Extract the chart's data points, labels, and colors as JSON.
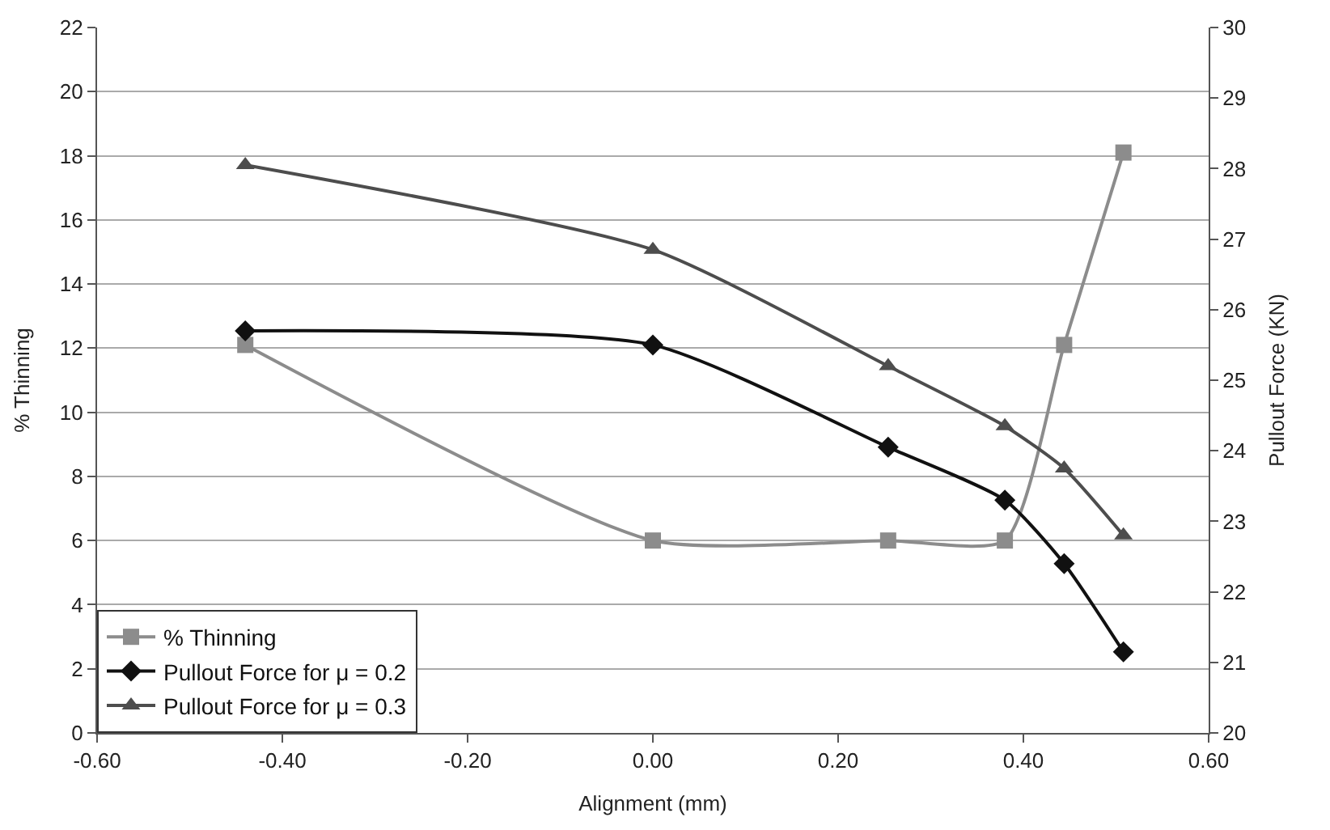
{
  "chart_data": {
    "type": "line",
    "xlabel": "Alignment (mm)",
    "ylabel": "% Thinning",
    "y2label": "Pullout Force (KN)",
    "x": [
      -0.44,
      0.0,
      0.254,
      0.38,
      0.444,
      0.508
    ],
    "series": [
      {
        "name": "% Thinning",
        "color": "#8c8c8c",
        "marker": "square",
        "values": [
          12.1,
          6.0,
          6.0,
          6.0,
          12.1,
          18.1
        ]
      },
      {
        "name": "Pullout Force for μ = 0.2",
        "color": "#111111",
        "marker": "diamond",
        "axis": "y2",
        "values": [
          25.7,
          25.5,
          24.05,
          23.3,
          22.4,
          21.15
        ]
      },
      {
        "name": "Pullout Force for μ = 0.3",
        "color": "#4d4d4d",
        "marker": "triangle",
        "axis": "y2",
        "values": [
          28.05,
          26.85,
          25.2,
          24.35,
          23.75,
          22.8
        ]
      }
    ],
    "xlim": [
      -0.6,
      0.6
    ],
    "xticks": [
      {
        "value": -0.6,
        "label": "-0.60"
      },
      {
        "value": -0.4,
        "label": "-0.40"
      },
      {
        "value": -0.2,
        "label": "-0.20"
      },
      {
        "value": 0,
        "label": "0.00"
      },
      {
        "value": 0.2,
        "label": "0.20"
      },
      {
        "value": 0.4,
        "label": "0.40"
      },
      {
        "value": 0.6,
        "label": "0.60"
      }
    ],
    "ylim": [
      0,
      22
    ],
    "yticks": [
      0,
      2,
      4,
      6,
      8,
      10,
      12,
      14,
      16,
      18,
      20,
      22
    ],
    "y2lim": [
      20,
      30
    ],
    "y2ticks": [
      20,
      21,
      22,
      23,
      24,
      25,
      26,
      27,
      28,
      29,
      30
    ],
    "grid": "y",
    "legend": "bottom left",
    "line_style": "solid"
  }
}
